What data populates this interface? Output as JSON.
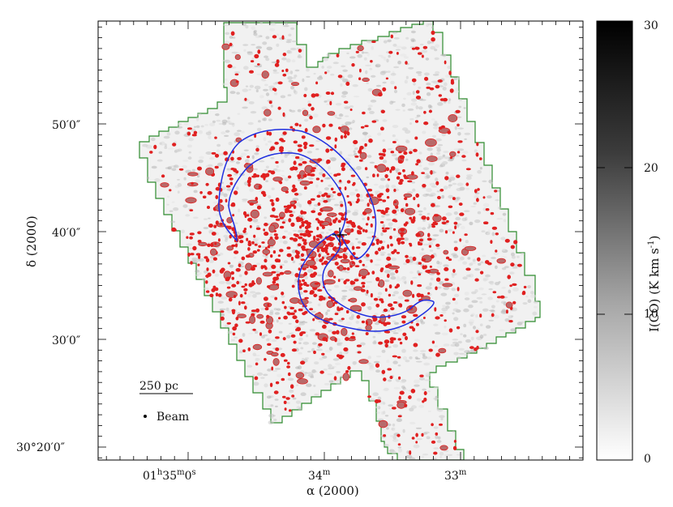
{
  "chart_data": {
    "type": "heatmap",
    "title": "",
    "xlabel": "α (2000)",
    "ylabel": "δ (2000)",
    "x_ticks": [
      {
        "h": "01",
        "m": "35",
        "s": "0",
        "label_parts": [
          "01",
          "h",
          "35",
          "m",
          "0",
          "s"
        ],
        "ra_min_offset": 0
      },
      {
        "label_parts": [
          "34",
          "m"
        ],
        "ra_min_offset": -1
      },
      {
        "label_parts": [
          "33",
          "m"
        ],
        "ra_min_offset": -2
      }
    ],
    "y_ticks": [
      {
        "label_parts": [
          "30",
          "°",
          "20",
          "′",
          "0",
          "″"
        ],
        "dec_arcmin": 20
      },
      {
        "label_parts": [
          "30",
          "′",
          "0",
          "″"
        ],
        "dec_arcmin": 30
      },
      {
        "label_parts": [
          "40",
          "′",
          "0",
          "″"
        ],
        "dec_arcmin": 40
      },
      {
        "label_parts": [
          "50",
          "′",
          "0",
          "″"
        ],
        "dec_arcmin": 50
      }
    ],
    "xlim_ra_min_offset": [
      0.53,
      -2.54
    ],
    "ylim_dec_arcmin": [
      19.5,
      59.0
    ],
    "colorbar": {
      "label": "I(CO) (K km s",
      "label_sup": "-1",
      "label_end": ")",
      "min": 0,
      "max": 30,
      "ticks": [
        0,
        10,
        20,
        30
      ],
      "colormap": "gray_reversed"
    },
    "annotations": {
      "scale_bar_label": "250 pc",
      "scale_bar_length_pc": 250,
      "beam_label": "Beam"
    },
    "center_marker_ra_dec": [
      -0.84,
      39.6
    ],
    "colors": {
      "survey_boundary": "#2e8b2e",
      "emission_contours": "#e02020",
      "spiral_arms": "#1f2fe0",
      "marker": "#000000"
    }
  }
}
